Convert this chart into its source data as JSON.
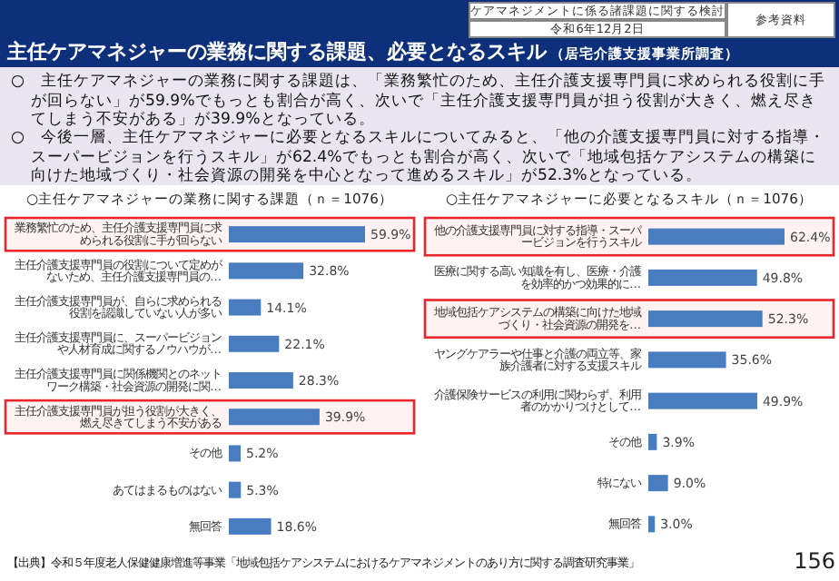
{
  "chart_data": [
    {
      "type": "other",
      "title": "主任ケアマネジャーの業務に関する課題、必要となるスキル",
      "subtitle": "（居宅介護支援事業所調査）",
      "annotations": [
        "ケアマネジメントに係る諸課題に関する検討会(第6回)",
        "令和6年12月2日",
        "参考資料",
        "○　主任ケアマネジャーの業務に関する課題は、「業務繁忙のため、主任介護支援専門員に求められる役割に手が回らない」が59.9%でもっとも割合が高く、次いで「主任介護支援専門員が担う役割が大きく、燃え尽きてしまう不安がある」が39.9%となっている。",
        "○　今後一層、主任ケアマネジャーに必要となるスキルについてみると、「他の介護支援専門員に対する指導・スーパービジョンを行うスキル」が62.4%でもっとも割合が高く、次いで「地域包括ケアシステムの構築に向けた地域づくり・社会資源の開発を中心となって進めるスキル」が52.3%となっている。",
        "【出典】令和５年度老人保健健康増進等事業「地域包括ケアシステムにおけるケアマネジメントのあり方に関する調査研究事業」",
        "156"
      ]
    },
    {
      "type": "bar",
      "orientation": "horizontal",
      "title": "○主任ケアマネジャーの業務に関する課題（ｎ＝1076）",
      "color": "#4a7cc0",
      "categories": [
        "業務繁忙のため、主任介護支援専門員に求められる役割に手が回らない",
        "主任介護支援専門員の役割について定めがないため、主任介護支援専門員の…",
        "主任介護支援専門員が、自らに求められる役割を認識していない人が多い",
        "主任介護支援専門員に、スーパービジョンや人材育成に関するノウハウが…",
        "主任介護支援専門員に関係機関とのネットワーク構築・社会資源の開発に関…",
        "主任介護支援専門員が担う役割が大きく、燃え尽きてしまう不安がある",
        "その他",
        "あてはまるものはない",
        "無回答"
      ],
      "values": [
        59.9,
        32.8,
        14.1,
        22.1,
        28.3,
        39.9,
        5.2,
        5.3,
        18.6
      ],
      "value_labels": [
        "59.9%",
        "32.8%",
        "14.1%",
        "22.1%",
        "28.3%",
        "39.9%",
        "5.2%",
        "5.3%",
        "18.6%"
      ],
      "bands": [
        {
          "axis": "y",
          "from": "業務繁忙のため、主任介護支援専門員に求められる役割に手が回らない",
          "to": "業務繁忙のため、主任介護支援専門員に求められる役割に手が回らない",
          "color": "#e8262b"
        },
        {
          "axis": "y",
          "from": "主任介護支援専門員が担う役割が大きく、燃え尽きてしまう不安がある",
          "to": "主任介護支援専門員が担う役割が大きく、燃え尽きてしまう不安がある",
          "color": "#e8262b"
        }
      ]
    },
    {
      "type": "bar",
      "orientation": "horizontal",
      "title": "○主任ケアマネジャーに必要となるスキル（ｎ＝1076）",
      "color": "#4a7cc0",
      "categories": [
        "他の介護支援専門員に対する指導・スーパービジョンを行うスキル",
        "医療に関する高い知識を有し、医療・介護を効率的かつ効果的に…",
        "地域包括ケアシステムの構築に向けた地域づくり・社会資源の開発を…",
        "ヤングケアラーや仕事と介護の両立等、家族介護者に対する支援スキル",
        "介護保険サービスの利用に関わらず、利用者のかかりつけとして…",
        "その他",
        "特にない",
        "無回答"
      ],
      "values": [
        62.4,
        49.8,
        52.3,
        35.6,
        49.9,
        3.9,
        9.0,
        3.0
      ],
      "value_labels": [
        "62.4%",
        "49.8%",
        "52.3%",
        "35.6%",
        "49.9%",
        "3.9%",
        "9.0%",
        "3.0%"
      ],
      "bands": [
        {
          "axis": "y",
          "from": "他の介護支援専門員に対する指導・スーパービジョンを行うスキル",
          "to": "他の介護支援専門員に対する指導・スーパービジョンを行うスキル",
          "color": "#e8262b"
        },
        {
          "axis": "y",
          "from": "地域包括ケアシステムの構築に向けた地域づくり・社会資源の開発を…",
          "to": "地域包括ケアシステムの構築に向けた地域づくり・社会資源の開発を…",
          "color": "#e8262b"
        }
      ]
    }
  ]
}
